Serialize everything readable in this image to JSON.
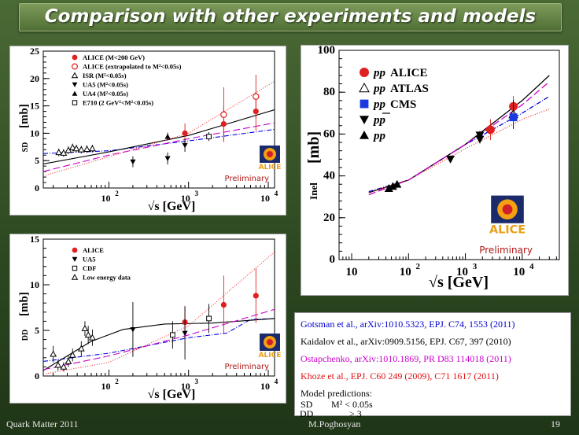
{
  "slide": {
    "title": "Comparison with other experiments and models",
    "footer_left": "Quark Matter 2011",
    "footer_center": "M.Poghosyan",
    "page_number": "19"
  },
  "chart_data": [
    {
      "id": "sd",
      "type": "scatter",
      "ylabel_pre": "SD",
      "ylabel_post": "[mb]",
      "xlabel": "√s [GeV]",
      "xscale": "log",
      "xlim": [
        15,
        12000
      ],
      "ylim": [
        0,
        25
      ],
      "yticks": [
        0,
        5,
        10,
        15,
        20,
        25
      ],
      "xticks": [
        {
          "v": 100,
          "base": "10",
          "exp": "2"
        },
        {
          "v": 1000,
          "base": "10",
          "exp": "3"
        },
        {
          "v": 10000,
          "base": "10",
          "exp": "4"
        }
      ],
      "preliminary": "Preliminary",
      "logo_text": "ALICE",
      "legend": [
        {
          "marker": "circle-filled",
          "color": "#e02020",
          "label": "ALICE (M<200 GeV)"
        },
        {
          "marker": "circle-open",
          "color": "#e02020",
          "label": "ALICE (extrapolated to M²<0.05s)"
        },
        {
          "marker": "triangle-open",
          "color": "#000000",
          "label": "ISR  (M²<0.05s)"
        },
        {
          "marker": "triangle-down",
          "color": "#000000",
          "label": "UA5  (M²<0.05s)"
        },
        {
          "marker": "triangle-up",
          "color": "#000000",
          "label": "UA4  (M²<0.05s)"
        },
        {
          "marker": "square-open",
          "color": "#000000",
          "label": "E710 (2 GeV²<M²<0.05s)"
        }
      ],
      "series": [
        {
          "name": "ALICE (M<200 GeV)",
          "marker": "circle-filled",
          "color": "#e02020",
          "points": [
            {
              "x": 900,
              "y": 10.0,
              "err": 1.8
            },
            {
              "x": 2760,
              "y": 11.7,
              "err": 3.0
            },
            {
              "x": 7000,
              "y": 14.0,
              "err": 3.5
            }
          ]
        },
        {
          "name": "ALICE (extrapolated)",
          "marker": "circle-open",
          "color": "#e02020",
          "points": [
            {
              "x": 2760,
              "y": 13.4,
              "err": 5.0
            },
            {
              "x": 7000,
              "y": 16.7,
              "err": 4.0
            }
          ]
        },
        {
          "name": "ISR",
          "marker": "triangle-open",
          "color": "#000000",
          "points": [
            {
              "x": 23.5,
              "y": 6.5,
              "err": 0.7
            },
            {
              "x": 27,
              "y": 6.4,
              "err": 0.7
            },
            {
              "x": 31,
              "y": 6.9,
              "err": 0.7
            },
            {
              "x": 35,
              "y": 7.4,
              "err": 0.7
            },
            {
              "x": 39,
              "y": 7.2,
              "err": 0.7
            },
            {
              "x": 45,
              "y": 7.0,
              "err": 0.7
            },
            {
              "x": 53,
              "y": 7.1,
              "err": 0.7
            },
            {
              "x": 62,
              "y": 7.2,
              "err": 0.7
            }
          ]
        },
        {
          "name": "UA5",
          "marker": "triangle-down",
          "color": "#000000",
          "points": [
            {
              "x": 200,
              "y": 4.8,
              "err": 1.0
            },
            {
              "x": 546,
              "y": 5.4,
              "err": 1.1
            },
            {
              "x": 900,
              "y": 7.8,
              "err": 1.2
            }
          ]
        },
        {
          "name": "UA4",
          "marker": "triangle-up",
          "color": "#000000",
          "points": [
            {
              "x": 546,
              "y": 9.4,
              "err": 0.7
            }
          ]
        },
        {
          "name": "E710",
          "marker": "square-open",
          "color": "#000000",
          "points": [
            {
              "x": 1800,
              "y": 9.4,
              "err": 0.8
            }
          ]
        }
      ],
      "curves": [
        {
          "model": "Gotsman",
          "color": "#0000dd",
          "dash": "6,2,1,2",
          "points": [
            [
              15,
              6.3
            ],
            [
              100,
              6.8
            ],
            [
              1000,
              8.6
            ],
            [
              12000,
              10.7
            ]
          ]
        },
        {
          "model": "Kaidalov",
          "color": "#000000",
          "dash": "",
          "points": [
            [
              15,
              4.4
            ],
            [
              100,
              6.6
            ],
            [
              1000,
              9.6
            ],
            [
              12000,
              14.3
            ]
          ]
        },
        {
          "model": "Ostapchenko",
          "color": "#cc00cc",
          "dash": "9,4",
          "points": [
            [
              15,
              3.0
            ],
            [
              100,
              6.0
            ],
            [
              1000,
              9.0
            ],
            [
              12000,
              11.9
            ]
          ]
        },
        {
          "model": "Khoze",
          "color": "#ee3333",
          "dash": "1,2",
          "points": [
            [
              15,
              2.2
            ],
            [
              100,
              5.7
            ],
            [
              1000,
              10.0
            ],
            [
              12000,
              19.5
            ]
          ]
        }
      ]
    },
    {
      "id": "dd",
      "type": "scatter",
      "ylabel_pre": "DD",
      "ylabel_post": "[mb]",
      "xlabel": "√s [GeV]",
      "xscale": "log",
      "xlim": [
        15,
        12000
      ],
      "ylim": [
        0,
        15
      ],
      "yticks": [
        0,
        5,
        10,
        15
      ],
      "xticks": [
        {
          "v": 100,
          "base": "10",
          "exp": "2"
        },
        {
          "v": 1000,
          "base": "10",
          "exp": "3"
        },
        {
          "v": 10000,
          "base": "10",
          "exp": "4"
        }
      ],
      "preliminary": "Preliminary",
      "logo_text": "ALICE",
      "legend": [
        {
          "marker": "circle-filled",
          "color": "#e02020",
          "label": "ALICE"
        },
        {
          "marker": "triangle-down",
          "color": "#000000",
          "label": "UA5"
        },
        {
          "marker": "square-open",
          "color": "#000000",
          "label": "CDF"
        },
        {
          "marker": "triangle-open",
          "color": "#000000",
          "label": "Low energy data"
        }
      ],
      "series": [
        {
          "name": "ALICE",
          "marker": "circle-filled",
          "color": "#e02020",
          "points": [
            {
              "x": 900,
              "y": 5.9,
              "err": 1.8
            },
            {
              "x": 2760,
              "y": 7.8,
              "err": 3.2
            },
            {
              "x": 7000,
              "y": 8.8,
              "err": 3.0
            }
          ]
        },
        {
          "name": "UA5",
          "marker": "triangle-down",
          "color": "#000000",
          "points": [
            {
              "x": 200,
              "y": 5.1,
              "err": 3.0
            },
            {
              "x": 900,
              "y": 4.7,
              "err": 2.9
            }
          ]
        },
        {
          "name": "CDF",
          "marker": "square-open",
          "color": "#000000",
          "points": [
            {
              "x": 630,
              "y": 4.5,
              "err": 1.5
            },
            {
              "x": 1800,
              "y": 6.3,
              "err": 1.6
            }
          ]
        },
        {
          "name": "Low energy data",
          "marker": "triangle-open",
          "color": "#000000",
          "points": [
            {
              "x": 20,
              "y": 2.4,
              "err": 0.9
            },
            {
              "x": 23,
              "y": 1.2,
              "err": 0.6
            },
            {
              "x": 27,
              "y": 1.0,
              "err": 0.5
            },
            {
              "x": 31,
              "y": 1.6,
              "err": 0.6
            },
            {
              "x": 35,
              "y": 2.3,
              "err": 0.7
            },
            {
              "x": 45,
              "y": 3.0,
              "err": 0.8
            },
            {
              "x": 50,
              "y": 5.2,
              "err": 0.8
            },
            {
              "x": 55,
              "y": 4.5,
              "err": 1.0
            },
            {
              "x": 62,
              "y": 4.2,
              "err": 0.9
            }
          ]
        }
      ],
      "curves": [
        {
          "model": "Gotsman",
          "color": "#0000dd",
          "dash": "6,2,1,2",
          "points": [
            [
              15,
              1.6
            ],
            [
              100,
              2.5
            ],
            [
              1000,
              4.2
            ],
            [
              3000,
              4.7
            ],
            [
              6000,
              6.2
            ],
            [
              12000,
              6.3
            ]
          ]
        },
        {
          "model": "Kaidalov",
          "color": "#000000",
          "dash": "",
          "points": [
            [
              15,
              0.6
            ],
            [
              30,
              2.2
            ],
            [
              60,
              3.8
            ],
            [
              150,
              5.1
            ],
            [
              500,
              5.7
            ],
            [
              2000,
              5.8
            ],
            [
              12000,
              6.3
            ]
          ]
        },
        {
          "model": "Ostapchenko",
          "color": "#cc00cc",
          "dash": "9,4",
          "points": [
            [
              15,
              0.7
            ],
            [
              100,
              2.2
            ],
            [
              1000,
              4.5
            ],
            [
              12000,
              7.3
            ]
          ]
        },
        {
          "model": "Khoze",
          "color": "#ee3333",
          "dash": "1,2",
          "points": [
            [
              15,
              0.2
            ],
            [
              100,
              1.5
            ],
            [
              1000,
              5.5
            ],
            [
              12000,
              13.6
            ]
          ]
        }
      ]
    },
    {
      "id": "inel",
      "type": "scatter",
      "ylabel_pre": "Inel",
      "ylabel_post": "[mb]",
      "xlabel": "√s [GeV]",
      "xscale": "log",
      "xlim": [
        6,
        45000
      ],
      "ylim": [
        0,
        100
      ],
      "yticks": [
        0,
        20,
        40,
        60,
        80,
        100
      ],
      "xticks": [
        {
          "v": 10,
          "base": "10",
          "exp": ""
        },
        {
          "v": 100,
          "base": "10",
          "exp": "2"
        },
        {
          "v": 1000,
          "base": "10",
          "exp": "3"
        },
        {
          "v": 10000,
          "base": "10",
          "exp": "4"
        }
      ],
      "preliminary": "Preliminary",
      "logo_text": "ALICE",
      "legend": [
        {
          "marker": "circle-filled",
          "color": "#e02020",
          "label_a": "pp",
          "label_b": "ALICE"
        },
        {
          "marker": "triangle-open",
          "color": "#000000",
          "label_a": "pp",
          "label_b": "ATLAS"
        },
        {
          "marker": "square-filled",
          "color": "#1a3ae0",
          "label_a": "pp",
          "label_b": "CMS"
        },
        {
          "marker": "triangle-down",
          "color": "#000000",
          "label_a": "pp",
          "label_b": ""
        },
        {
          "marker": "triangle-up",
          "color": "#000000",
          "label_a": "pp",
          "label_b": ""
        }
      ],
      "series": [
        {
          "name": "pp ALICE",
          "marker": "circle-filled",
          "color": "#e02020",
          "points": [
            {
              "x": 2760,
              "y": 62.1,
              "err": 5.0
            },
            {
              "x": 7000,
              "y": 73.2,
              "err": 5.0
            }
          ]
        },
        {
          "name": "pp ATLAS",
          "marker": "triangle-open",
          "color": "#000000",
          "points": [
            {
              "x": 7000,
              "y": 69.4,
              "err": 7.0
            }
          ]
        },
        {
          "name": "pp CMS",
          "marker": "square-filled",
          "color": "#1a3ae0",
          "points": [
            {
              "x": 7000,
              "y": 68.0,
              "err": 3.0
            }
          ]
        },
        {
          "name": "ppbar",
          "marker": "triangle-down",
          "color": "#000000",
          "points": [
            {
              "x": 546,
              "y": 48.0,
              "err": 1.5
            },
            {
              "x": 1800,
              "y": 59.5,
              "err": 2.0
            },
            {
              "x": 1800,
              "y": 57.5,
              "err": 2.0
            }
          ]
        },
        {
          "name": "pp low energy",
          "marker": "triangle-up",
          "color": "#000000",
          "points": [
            {
              "x": 45,
              "y": 34.0,
              "err": 1.5
            },
            {
              "x": 53,
              "y": 35.0,
              "err": 1.5
            },
            {
              "x": 63,
              "y": 36.0,
              "err": 1.5
            }
          ]
        }
      ],
      "curves": [
        {
          "model": "Gotsman",
          "color": "#0000dd",
          "dash": "6,2,1,2",
          "points": [
            [
              20,
              32.5
            ],
            [
              100,
              38
            ],
            [
              1000,
              55
            ],
            [
              10000,
              70
            ],
            [
              30000,
              78
            ]
          ]
        },
        {
          "model": "Kaidalov",
          "color": "#000000",
          "dash": "",
          "points": [
            [
              20,
              32
            ],
            [
              100,
              38
            ],
            [
              1000,
              55
            ],
            [
              10000,
              76
            ],
            [
              30000,
              88
            ]
          ]
        },
        {
          "model": "Ostapchenko",
          "color": "#cc00cc",
          "dash": "9,4",
          "points": [
            [
              20,
              31
            ],
            [
              100,
              38
            ],
            [
              1000,
              55
            ],
            [
              10000,
              74
            ],
            [
              30000,
              85
            ]
          ]
        },
        {
          "model": "Khoze",
          "color": "#ee3333",
          "dash": "1,2",
          "points": [
            [
              20,
              32
            ],
            [
              100,
              38
            ],
            [
              1000,
              53
            ],
            [
              10000,
              67
            ],
            [
              30000,
              72
            ]
          ]
        }
      ]
    }
  ],
  "references": {
    "gotsman": {
      "text": "Gotsman et al., arXiv:1010.5323, EPJ. C74, 1553 (2011)",
      "color": "#0000cc"
    },
    "kaidalov": {
      "text": "Kaidalov et al., arXiv:0909.5156, EPJ. C67, 397 (2010)",
      "color": "#000000"
    },
    "ostapchenko": {
      "text": "Ostapchenko, arXiv:1010.1869, PR D83 114018 (2011)",
      "color": "#cc00cc"
    },
    "khoze": {
      "text": "Khoze et al., EPJ. C60 249 (2009), C71 1617 (2011)",
      "color": "#dd1111"
    },
    "model_title": "Model predictions:",
    "sd_label": "SD",
    "sd_value": "M² < 0.05s",
    "dd_label": "DD",
    "dd_value": "> 3"
  }
}
